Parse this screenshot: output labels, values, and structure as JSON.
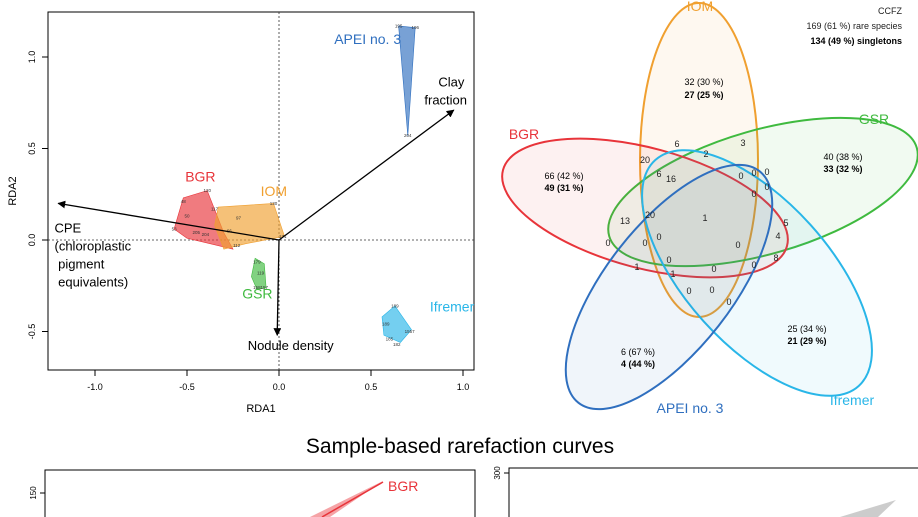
{
  "colors": {
    "bgr": "#e8343a",
    "iom": "#f0a030",
    "gsr": "#3fba3f",
    "apei": "#2f6fbf",
    "ifremer": "#29b6e8",
    "gray": "#aaaaaa"
  },
  "chart_data": [
    {
      "type": "scatter",
      "subtype": "rda-biplot",
      "xlabel": "RDA1",
      "ylabel": "RDA2",
      "xlim": [
        -1.25,
        1.05
      ],
      "ylim": [
        -0.75,
        1.3
      ],
      "xticks": [
        "-1.0",
        "-0.5",
        "0.0",
        "0.5",
        "1.0"
      ],
      "yticks": [
        "-0.5",
        "0.0",
        "0.5",
        "1.0"
      ],
      "groups": [
        {
          "name": "BGR",
          "color_key": "bgr",
          "label_at": [
            -0.51,
            0.32
          ],
          "hull": [
            [
              -0.39,
              0.27
            ],
            [
              -0.3,
              0.04
            ],
            [
              -0.25,
              -0.05
            ],
            [
              -0.5,
              0.01
            ],
            [
              -0.57,
              0.06
            ],
            [
              -0.52,
              0.23
            ]
          ],
          "points": [
            {
              "x": -0.39,
              "y": 0.27,
              "label": "120"
            },
            {
              "x": -0.52,
              "y": 0.21,
              "label": "48"
            },
            {
              "x": -0.35,
              "y": 0.17,
              "label": "117"
            },
            {
              "x": -0.5,
              "y": 0.13,
              "label": "50"
            },
            {
              "x": -0.57,
              "y": 0.06,
              "label": "53"
            },
            {
              "x": -0.45,
              "y": 0.04,
              "label": "205"
            },
            {
              "x": -0.4,
              "y": 0.03,
              "label": "204"
            }
          ]
        },
        {
          "name": "IOM",
          "color_key": "iom",
          "label_at": [
            -0.1,
            0.24
          ],
          "hull": [
            [
              -0.33,
              0.18
            ],
            [
              -0.03,
              0.2
            ],
            [
              0.03,
              0.02
            ],
            [
              -0.18,
              -0.02
            ],
            [
              -0.3,
              -0.05
            ],
            [
              -0.35,
              0.08
            ]
          ],
          "points": [
            {
              "x": -0.03,
              "y": 0.2,
              "label": "130"
            },
            {
              "x": -0.22,
              "y": 0.12,
              "label": "97"
            },
            {
              "x": -0.27,
              "y": 0.05,
              "label": "66"
            },
            {
              "x": -0.23,
              "y": -0.03,
              "label": "112"
            },
            {
              "x": 0.02,
              "y": 0.02,
              "label": "171"
            }
          ]
        },
        {
          "name": "GSR",
          "color_key": "gsr",
          "label_at": [
            -0.2,
            -0.32
          ],
          "hull": [
            [
              -0.13,
              -0.1
            ],
            [
              -0.08,
              -0.13
            ],
            [
              -0.07,
              -0.26
            ],
            [
              -0.12,
              -0.27
            ],
            [
              -0.15,
              -0.2
            ]
          ],
          "points": [
            {
              "x": -0.12,
              "y": -0.12,
              "label": "179"
            },
            {
              "x": -0.1,
              "y": -0.18,
              "label": "119"
            },
            {
              "x": -0.12,
              "y": -0.26,
              "label": "158"
            },
            {
              "x": -0.08,
              "y": -0.26,
              "label": "157"
            }
          ]
        },
        {
          "name": "APEI no. 3",
          "color_key": "apei",
          "label_at": [
            0.3,
            1.07
          ],
          "hull": [
            [
              0.65,
              1.17
            ],
            [
              0.74,
              1.16
            ],
            [
              0.7,
              0.57
            ]
          ],
          "points": [
            {
              "x": 0.65,
              "y": 1.17,
              "label": "195"
            },
            {
              "x": 0.74,
              "y": 1.16,
              "label": "196"
            },
            {
              "x": 0.7,
              "y": 0.57,
              "label": "204"
            }
          ]
        },
        {
          "name": "Ifremer",
          "color_key": "ifremer",
          "label_at": [
            0.82,
            -0.39
          ],
          "hull": [
            [
              0.63,
              -0.36
            ],
            [
              0.72,
              -0.49
            ],
            [
              0.66,
              -0.56
            ],
            [
              0.57,
              -0.52
            ],
            [
              0.56,
              -0.42
            ]
          ],
          "points": [
            {
              "x": 0.63,
              "y": -0.36,
              "label": "189"
            },
            {
              "x": 0.58,
              "y": -0.46,
              "label": "189"
            },
            {
              "x": 0.71,
              "y": -0.5,
              "label": "1557"
            },
            {
              "x": 0.6,
              "y": -0.54,
              "label": "185"
            },
            {
              "x": 0.64,
              "y": -0.57,
              "label": "182"
            }
          ]
        }
      ],
      "arrows": [
        {
          "x": 0.95,
          "y": 0.71,
          "label": "Clay fraction",
          "label_lines": [
            "Clay",
            "fraction"
          ]
        },
        {
          "x": -1.2,
          "y": 0.2,
          "label": "CPE (chloroplastic pigment equivalents)",
          "label_lines": [
            "CPE",
            "(chloroplastic",
            " pigment",
            " equivalents)"
          ]
        },
        {
          "x": -0.01,
          "y": -0.52,
          "label": "Nodule density",
          "label_lines": [
            "Nodule density"
          ]
        }
      ]
    },
    {
      "type": "venn",
      "summary": [
        "CCFZ",
        "169 (61 %) rare species",
        "134 (49 %) singletons"
      ],
      "sets": [
        {
          "name": "IOM",
          "color_key": "iom",
          "unique": "32 (30 %)",
          "singletons": "27 (25 %)"
        },
        {
          "name": "GSR",
          "color_key": "gsr",
          "unique": "40 (38 %)",
          "singletons": "33 (32 %)"
        },
        {
          "name": "BGR",
          "color_key": "bgr",
          "unique": "66 (42 %)",
          "singletons": "49 (31 %)"
        },
        {
          "name": "APEI no. 3",
          "color_key": "apei",
          "unique": "6 (67 %)",
          "singletons": "4 (44 %)"
        },
        {
          "name": "Ifremer",
          "color_key": "ifremer",
          "unique": "25 (34 %)",
          "singletons": "21 (29 %)"
        }
      ],
      "intersection_counts": [
        "6",
        "3",
        "20",
        "6",
        "2",
        "16",
        "0",
        "0",
        "0",
        "0",
        "0",
        "13",
        "20",
        "1",
        "0",
        "5",
        "4",
        "0",
        "0",
        "1",
        "1",
        "0",
        "0",
        "8",
        "0",
        "0",
        "0",
        "0",
        "0"
      ]
    },
    {
      "type": "area",
      "title": "Sample-based rarefaction curves",
      "panels": [
        {
          "ytick_top": "150",
          "series": [
            {
              "name": "BGR",
              "color_key": "bgr"
            }
          ]
        },
        {
          "ytick_top": "300",
          "series": [
            {
              "name": "",
              "color_key": "gray"
            }
          ]
        }
      ]
    }
  ]
}
